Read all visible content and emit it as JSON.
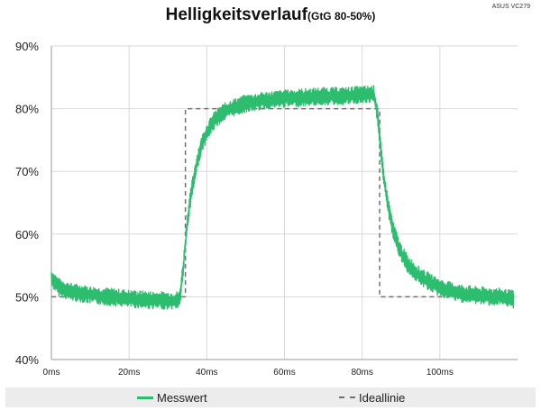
{
  "corner_label": "ASUS VC279",
  "chart_data": {
    "type": "line",
    "title": "Helligkeitsverlauf",
    "subtitle": "(GtG 80-50%)",
    "xlabel": "",
    "ylabel": "",
    "x_ticks": [
      "0ms",
      "20ms",
      "40ms",
      "60ms",
      "80ms",
      "100ms"
    ],
    "y_ticks": [
      "40%",
      "50%",
      "60%",
      "70%",
      "80%",
      "90%"
    ],
    "xlim": [
      0,
      120
    ],
    "ylim": [
      40,
      90
    ],
    "grid": true,
    "legend": "bottom",
    "series": [
      {
        "name": "Messwert",
        "color": "#2dbd6e",
        "style": "solid",
        "x": [
          0,
          2,
          5,
          10,
          15,
          20,
          25,
          30,
          33,
          34,
          35,
          36,
          37,
          38,
          39,
          40,
          42,
          44,
          46,
          50,
          55,
          60,
          65,
          70,
          75,
          80,
          83,
          84,
          85,
          86,
          87,
          88,
          90,
          92,
          95,
          100,
          105,
          110,
          115,
          119
        ],
        "y": [
          53,
          51.5,
          50.8,
          50.3,
          50,
          49.7,
          49.5,
          49.4,
          49.5,
          55,
          62,
          66.5,
          70,
          72.8,
          74.8,
          76.2,
          78.2,
          79.3,
          80,
          80.8,
          81.3,
          81.6,
          81.8,
          82,
          82,
          82.2,
          82.3,
          79,
          72,
          67,
          63.5,
          60.5,
          57,
          55,
          53.2,
          51.4,
          50.6,
          50.2,
          50,
          49.6
        ]
      },
      {
        "name": "Ideallinie",
        "color": "#707070",
        "style": "dashed",
        "x": [
          0,
          34.5,
          34.5,
          84.5,
          84.5,
          119
        ],
        "y": [
          50,
          50,
          80,
          80,
          50,
          50
        ]
      }
    ]
  }
}
